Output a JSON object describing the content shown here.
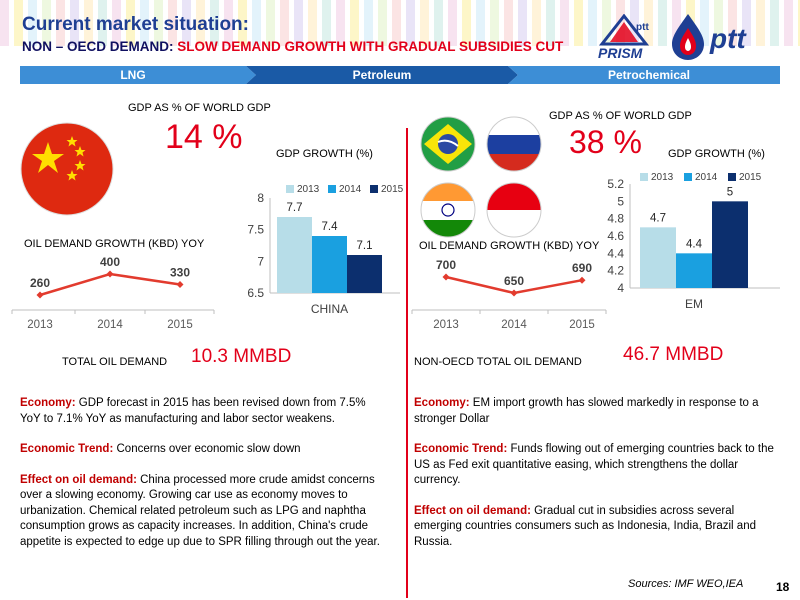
{
  "header": {
    "title": "Current market situation:",
    "subtitle_prefix": "NON – OECD DEMAND:",
    "subtitle_highlight": "SLOW DEMAND GROWTH WITH GRADUAL SUBSIDIES CUT",
    "logo_prism": "PRISM",
    "logo_ptt_small": "ptt",
    "logo_ptt": "ptt"
  },
  "nav": {
    "items": [
      "LNG",
      "Petroleum",
      "Petrochemical"
    ]
  },
  "colors": {
    "accent_blue": "#1f3f93",
    "accent_red": "#e2001a",
    "bar_2013": "#b7dde8",
    "bar_2014": "#1aa0e0",
    "bar_2015": "#0c2f6e",
    "line_red": "#e23b2e"
  },
  "left": {
    "gdp_share_label": "GDP AS % OF WORLD GDP",
    "gdp_share_value": "14 %",
    "oil_growth_label": "OIL DEMAND GROWTH (KBD) YOY",
    "total_label": "TOTAL OIL DEMAND",
    "total_value": "10.3 MMBD",
    "economy_label": "Economy:",
    "economy_text": " GDP forecast in 2015 has been revised down from 7.5% YoY to 7.1% YoY as manufacturing and labor sector weakens.",
    "trend_label": "Economic Trend:",
    "trend_text": " Concerns over economic slow down",
    "effect_label": "Effect on oil demand:",
    "effect_text": "  China processed more crude amidst concerns over a slowing economy. Growing car use as economy moves to urbanization. Chemical related petroleum such as LPG and naphtha consumption grows as capacity increases. In addition, China's crude appetite is expected to edge up due to SPR filling through out the year."
  },
  "right": {
    "gdp_share_label": "GDP AS % OF WORLD GDP",
    "gdp_share_value": "38 %",
    "oil_growth_label": "OIL DEMAND GROWTH (KBD) YOY",
    "total_label": "NON-OECD TOTAL OIL DEMAND",
    "total_value": "46.7 MMBD",
    "economy_label": "Economy:",
    "economy_text": " EM import growth has slowed markedly in response to a stronger Dollar",
    "trend_label": "Economic Trend:",
    "trend_text": " Funds flowing out of emerging countries back to the US as Fed exit quantitative easing, which strengthens the dollar currency.",
    "effect_label": "Effect on oil demand:",
    "effect_text": "  Gradual cut in subsidies across several emerging countries consumers such as Indonesia, India, Brazil and Russia."
  },
  "footer": {
    "sources": "Sources: IMF WEO,IEA",
    "page": "18"
  },
  "chart_data": [
    {
      "type": "line",
      "title": "",
      "x": [
        "2013",
        "2014",
        "2015"
      ],
      "series": [
        {
          "values": [
            260,
            400,
            330
          ]
        }
      ],
      "data_labels": [
        "260",
        "400",
        "330"
      ],
      "grid": false
    },
    {
      "type": "bar",
      "title": "GDP GROWTH (%)",
      "categories": [
        "CHINA"
      ],
      "series": [
        {
          "name": "2013",
          "values": [
            7.7
          ]
        },
        {
          "name": "2014",
          "values": [
            7.4
          ]
        },
        {
          "name": "2015",
          "values": [
            7.1
          ]
        }
      ],
      "data_labels": [
        "7.7",
        "7.4",
        "7.1"
      ],
      "ylim": [
        6.5,
        8
      ],
      "yticks": [
        "8",
        "7.5",
        "7",
        "6.5"
      ],
      "legend": "top"
    },
    {
      "type": "line",
      "title": "",
      "x": [
        "2013",
        "2014",
        "2015"
      ],
      "series": [
        {
          "values": [
            700,
            650,
            690
          ]
        }
      ],
      "data_labels": [
        "700",
        "650",
        "690"
      ],
      "grid": false
    },
    {
      "type": "bar",
      "title": "GDP GROWTH (%)",
      "categories": [
        "EM"
      ],
      "series": [
        {
          "name": "2013",
          "values": [
            4.7
          ]
        },
        {
          "name": "2014",
          "values": [
            4.4
          ]
        },
        {
          "name": "2015",
          "values": [
            5
          ]
        }
      ],
      "data_labels": [
        "4.7",
        "4.4",
        "5"
      ],
      "ylim": [
        4,
        5.2
      ],
      "yticks": [
        "5.2",
        "5",
        "4.8",
        "4.6",
        "4.4",
        "4.2",
        "4"
      ],
      "legend": "top"
    }
  ]
}
